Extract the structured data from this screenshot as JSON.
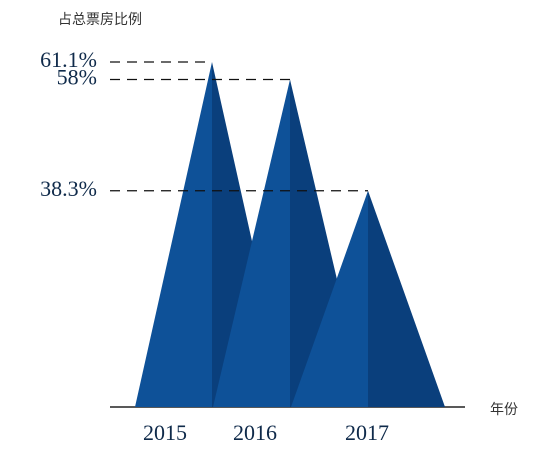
{
  "chart_data": {
    "type": "triangle",
    "y_label": "占总票房比例",
    "x_label": "年份",
    "categories": [
      "2015",
      "2016",
      "2017"
    ],
    "values": [
      61.1,
      58,
      38.3
    ],
    "colors": [
      "#0e5198",
      "#0a3f7c"
    ],
    "ylim": [
      0,
      65
    ],
    "yticks": [
      {
        "value": 61.1,
        "label": "61.1%"
      },
      {
        "value": 58,
        "label": "58%"
      },
      {
        "value": 38.3,
        "label": "38.3%"
      }
    ]
  }
}
